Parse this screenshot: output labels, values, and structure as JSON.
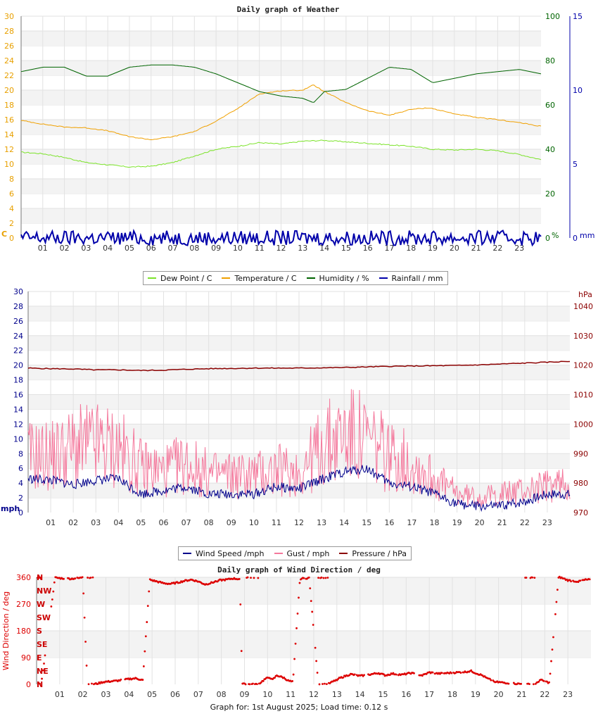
{
  "footer": "Graph for: 1st August 2025; Load time: 0.12 s",
  "chart_data": [
    {
      "type": "line",
      "title": "Daily graph of Weather",
      "x_ticks": [
        "01",
        "02",
        "03",
        "04",
        "05",
        "06",
        "07",
        "08",
        "09",
        "10",
        "11",
        "12",
        "13",
        "14",
        "15",
        "16",
        "17",
        "18",
        "19",
        "20",
        "21",
        "22",
        "23"
      ],
      "left_axis": {
        "unit": "C",
        "color": "#e8a000",
        "ylim": [
          0,
          30
        ],
        "ticks": [
          0,
          2,
          4,
          6,
          8,
          10,
          12,
          14,
          16,
          18,
          20,
          22,
          24,
          26,
          28,
          30
        ]
      },
      "right_axis_1": {
        "unit": "%",
        "color": "#006400",
        "ylim": [
          0,
          100
        ],
        "ticks": [
          0,
          20,
          40,
          60,
          80,
          100
        ]
      },
      "right_axis_2": {
        "unit": "mm",
        "color": "#0000aa",
        "ylim": [
          0,
          15
        ],
        "ticks": [
          0,
          5,
          10,
          15
        ]
      },
      "grid": true,
      "legend_position": "bottom",
      "series": [
        {
          "name": "Dew Point / C",
          "color": "#7be329",
          "axis": "left",
          "x": [
            0,
            1,
            2,
            3,
            4,
            5,
            6,
            7,
            8,
            9,
            10,
            11,
            12,
            13,
            14,
            15,
            16,
            17,
            18,
            19,
            20,
            21,
            22,
            23,
            24
          ],
          "values": [
            11.6,
            11.4,
            10.9,
            10.2,
            9.9,
            9.6,
            9.7,
            10.2,
            11.1,
            12.0,
            12.4,
            12.9,
            12.7,
            13.1,
            13.2,
            13.0,
            12.8,
            12.6,
            12.4,
            12.0,
            11.9,
            12.0,
            11.8,
            11.3,
            10.6
          ]
        },
        {
          "name": "Temperature / C",
          "color": "#f0a000",
          "axis": "left",
          "x": [
            0,
            1,
            2,
            3,
            4,
            5,
            6,
            7,
            8,
            9,
            10,
            11,
            12,
            13,
            13.5,
            14,
            15,
            16,
            17,
            18,
            18.8,
            19,
            20,
            21,
            22,
            23,
            24
          ],
          "values": [
            15.9,
            15.4,
            15.0,
            14.9,
            14.5,
            13.7,
            13.3,
            13.7,
            14.4,
            15.8,
            17.5,
            19.5,
            19.9,
            20.0,
            20.7,
            19.8,
            18.3,
            17.2,
            16.6,
            17.4,
            17.6,
            17.5,
            16.8,
            16.3,
            16.0,
            15.6,
            15.1
          ]
        },
        {
          "name": "Humidity / %",
          "color": "#006400",
          "axis": "right_1",
          "x": [
            0,
            1,
            2,
            3,
            4,
            5,
            6,
            7,
            8,
            9,
            10,
            11,
            12,
            13,
            13.5,
            14,
            15,
            16,
            17,
            18,
            19,
            20,
            21,
            22,
            23,
            24
          ],
          "values": [
            75,
            77,
            77,
            73,
            73,
            77,
            78,
            78,
            77,
            74,
            70,
            66,
            64,
            63,
            61,
            66,
            67,
            72,
            77,
            76,
            70,
            72,
            74,
            75,
            76,
            74
          ]
        },
        {
          "name": "Rainfall / mm",
          "color": "#0000aa",
          "axis": "right_2",
          "x": [
            0,
            24
          ],
          "values": [
            0,
            0
          ]
        }
      ]
    },
    {
      "type": "line",
      "title": "",
      "x_ticks": [
        "01",
        "02",
        "03",
        "04",
        "05",
        "06",
        "07",
        "08",
        "09",
        "10",
        "11",
        "12",
        "13",
        "14",
        "15",
        "16",
        "17",
        "18",
        "19",
        "20",
        "21",
        "22",
        "23"
      ],
      "left_axis": {
        "unit": "mph",
        "color": "#00008b",
        "ylim": [
          0,
          30
        ],
        "ticks": [
          0,
          2,
          4,
          6,
          8,
          10,
          12,
          14,
          16,
          18,
          20,
          22,
          24,
          26,
          28,
          30
        ]
      },
      "right_axis": {
        "unit": "hPa",
        "color": "#8b0000",
        "ylim": [
          970,
          1045
        ],
        "ticks": [
          970,
          980,
          990,
          1000,
          1010,
          1020,
          1030,
          1040
        ]
      },
      "grid": true,
      "legend_position": "bottom",
      "series": [
        {
          "name": "Wind Speed /mph",
          "color": "#00008b",
          "axis": "left",
          "x": [
            0,
            1,
            2,
            3,
            4,
            5,
            6,
            7,
            8,
            9,
            10,
            11,
            12,
            13,
            14,
            15,
            16,
            17,
            18,
            19,
            20,
            21,
            22,
            23,
            24
          ],
          "values": [
            4.6,
            4.4,
            3.8,
            4.4,
            4.6,
            2.5,
            3.0,
            3.5,
            2.5,
            2.5,
            2.5,
            3.5,
            3.2,
            4.5,
            5.5,
            6.0,
            4.0,
            3.5,
            2.5,
            1.2,
            0.8,
            0.9,
            1.5,
            2.5,
            2.5
          ]
        },
        {
          "name": "Gust / mph",
          "color": "#f4789c",
          "axis": "left",
          "x": [
            0,
            1,
            2,
            3,
            4,
            5,
            6,
            7,
            8,
            9,
            10,
            11,
            12,
            13,
            14,
            15,
            16,
            17,
            18,
            19,
            20,
            21,
            22,
            23,
            24
          ],
          "values": [
            7.5,
            7.5,
            8.5,
            9.0,
            8.5,
            6.0,
            5.5,
            6.5,
            5.0,
            5.0,
            5.0,
            5.5,
            5.5,
            8.5,
            10.5,
            9.5,
            7.5,
            6.5,
            4.5,
            2.5,
            2.0,
            2.5,
            3.0,
            3.5,
            4.0
          ]
        },
        {
          "name": "Pressure / hPa",
          "color": "#8b0000",
          "axis": "right",
          "x": [
            0,
            1,
            2,
            3,
            4,
            5,
            6,
            7,
            8,
            9,
            10,
            11,
            12,
            13,
            14,
            15,
            16,
            17,
            18,
            19,
            20,
            21,
            22,
            23,
            24
          ],
          "values": [
            1019.0,
            1018.8,
            1018.7,
            1018.4,
            1018.4,
            1018.2,
            1018.3,
            1018.6,
            1018.8,
            1018.9,
            1019.0,
            1019.0,
            1019.0,
            1019.1,
            1019.2,
            1019.4,
            1019.6,
            1019.7,
            1019.8,
            1019.9,
            1020.1,
            1020.4,
            1020.7,
            1021.0,
            1021.3
          ]
        }
      ]
    },
    {
      "type": "scatter",
      "title": "Daily graph of Wind Direction / deg",
      "ylabel": "Wind Direction / deg",
      "x_ticks": [
        "01",
        "02",
        "03",
        "04",
        "05",
        "06",
        "07",
        "08",
        "09",
        "10",
        "11",
        "12",
        "13",
        "14",
        "15",
        "16",
        "17",
        "18",
        "19",
        "20",
        "21",
        "22",
        "23"
      ],
      "y_ticks": [
        0,
        90,
        180,
        270,
        360
      ],
      "compass_labels": [
        "N",
        "NE",
        "E",
        "SE",
        "S",
        "SW",
        "W",
        "NW",
        "N"
      ],
      "ylim": [
        0,
        360
      ],
      "grid": true,
      "color": "#dd0000",
      "series": [
        {
          "name": "",
          "x": [
            0.2,
            0.8,
            1.0,
            1.5,
            1.9,
            2.0,
            2.2,
            2.4,
            2.6,
            2.9,
            3.2,
            3.5,
            4.0,
            4.3,
            4.6,
            4.9,
            5.2,
            5.5,
            5.8,
            6.1,
            6.4,
            6.7,
            7.0,
            7.3,
            7.6,
            7.9,
            8.2,
            8.5,
            8.8,
            8.9,
            9.1,
            9.4,
            9.6,
            9.9,
            10.1,
            10.2,
            10.4,
            10.7,
            10.9,
            11.1,
            11.4,
            11.8,
            12.2,
            12.6,
            12.8,
            13.1,
            13.3,
            13.6,
            14.0,
            14.5,
            14.8,
            15.1,
            15.4,
            15.8,
            16.2,
            16.7,
            17.0,
            17.4,
            17.8,
            18.2,
            18.6,
            18.8,
            19.0,
            19.3,
            19.5,
            19.9,
            20.3,
            20.8,
            21.3,
            21.6,
            21.8,
            22.2,
            22.6,
            23.0,
            23.4,
            23.8
          ],
          "values": [
            0,
            359,
            357,
            355,
            358,
            362,
            0,
            0,
            2,
            8,
            10,
            12,
            18,
            20,
            14,
            352,
            346,
            340,
            338,
            342,
            348,
            352,
            346,
            336,
            342,
            350,
            352,
            356,
            354,
            5,
            0,
            0,
            0,
            18,
            24,
            14,
            30,
            22,
            12,
            8,
            355,
            358,
            0,
            0,
            8,
            20,
            26,
            34,
            28,
            34,
            38,
            30,
            36,
            32,
            38,
            30,
            40,
            36,
            38,
            40,
            42,
            45,
            38,
            30,
            20,
            8,
            5,
            2,
            0,
            0,
            15,
            5,
            362,
            350,
            346,
            352
          ]
        }
      ]
    }
  ]
}
